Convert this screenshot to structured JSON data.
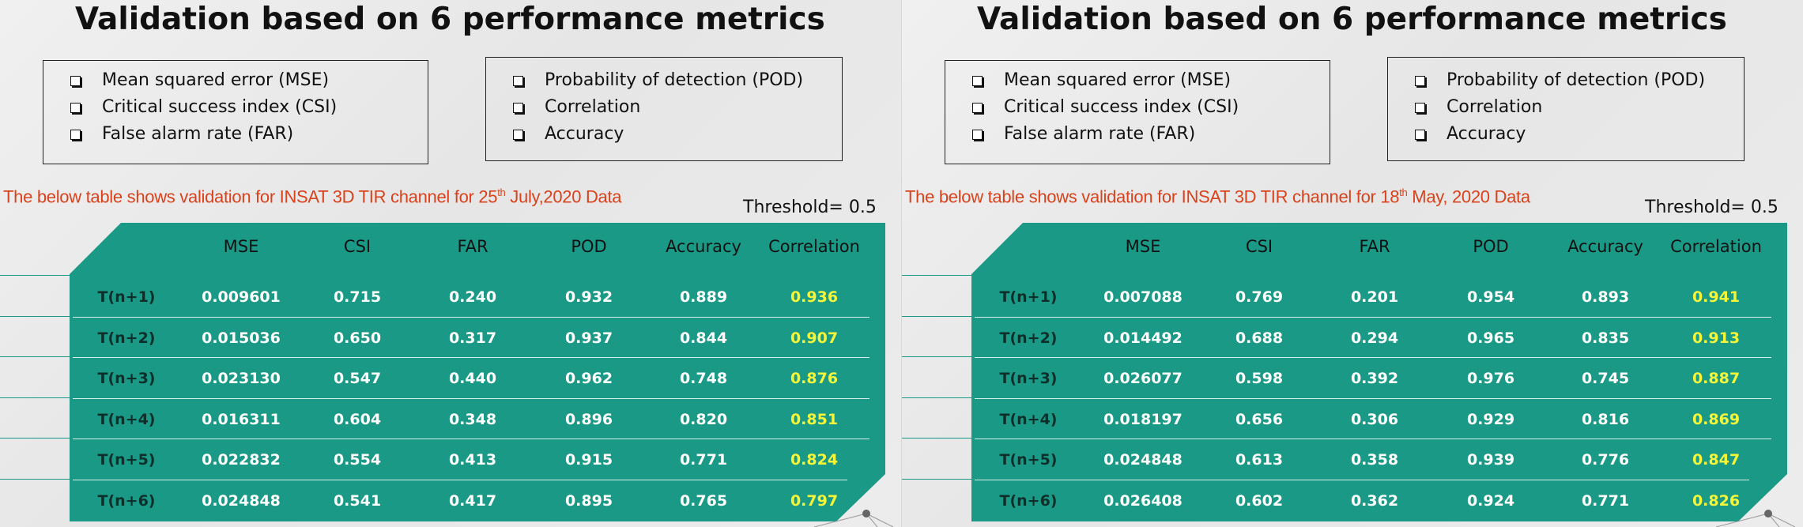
{
  "slides": [
    {
      "title": "Validation based on 6 performance metrics",
      "metrics_left": [
        "Mean squared error (MSE)",
        "Critical success index (CSI)",
        "False alarm rate (FAR)"
      ],
      "metrics_right": [
        "Probability of detection (POD)",
        "Correlation",
        "Accuracy"
      ],
      "caption_pre": "The below table shows validation for INSAT 3D TIR channel for 25",
      "caption_sup": "th",
      "caption_post": " July,2020 Data",
      "threshold": "Threshold= 0.5",
      "columns": [
        "MSE",
        "CSI",
        "FAR",
        "POD",
        "Accuracy",
        "Correlation"
      ],
      "rows": [
        {
          "label": "T(n+1)",
          "values": [
            "0.009601",
            "0.715",
            "0.240",
            "0.932",
            "0.889",
            "0.936"
          ]
        },
        {
          "label": "T(n+2)",
          "values": [
            "0.015036",
            "0.650",
            "0.317",
            "0.937",
            "0.844",
            "0.907"
          ]
        },
        {
          "label": "T(n+3)",
          "values": [
            "0.023130",
            "0.547",
            "0.440",
            "0.962",
            "0.748",
            "0.876"
          ]
        },
        {
          "label": "T(n+4)",
          "values": [
            "0.016311",
            "0.604",
            "0.348",
            "0.896",
            "0.820",
            "0.851"
          ]
        },
        {
          "label": "T(n+5)",
          "values": [
            "0.022832",
            "0.554",
            "0.413",
            "0.915",
            "0.771",
            "0.824"
          ]
        },
        {
          "label": "T(n+6)",
          "values": [
            "0.024848",
            "0.541",
            "0.417",
            "0.895",
            "0.765",
            "0.797"
          ]
        }
      ]
    },
    {
      "title": "Validation based on 6 performance metrics",
      "metrics_left": [
        "Mean squared error (MSE)",
        "Critical success index (CSI)",
        "False alarm rate (FAR)"
      ],
      "metrics_right": [
        "Probability of detection (POD)",
        "Correlation",
        "Accuracy"
      ],
      "caption_pre": "The below table shows validation for INSAT 3D TIR channel for 18",
      "caption_sup": "th",
      "caption_post": "  May, 2020 Data",
      "threshold": "Threshold= 0.5",
      "columns": [
        "MSE",
        "CSI",
        "FAR",
        "POD",
        "Accuracy",
        "Correlation"
      ],
      "rows": [
        {
          "label": "T(n+1)",
          "values": [
            "0.007088",
            "0.769",
            "0.201",
            "0.954",
            "0.893",
            "0.941"
          ]
        },
        {
          "label": "T(n+2)",
          "values": [
            "0.014492",
            "0.688",
            "0.294",
            "0.965",
            "0.835",
            "0.913"
          ]
        },
        {
          "label": "T(n+3)",
          "values": [
            "0.026077",
            "0.598",
            "0.392",
            "0.976",
            "0.745",
            "0.887"
          ]
        },
        {
          "label": "T(n+4)",
          "values": [
            "0.018197",
            "0.656",
            "0.306",
            "0.929",
            "0.816",
            "0.869"
          ]
        },
        {
          "label": "T(n+5)",
          "values": [
            "0.024848",
            "0.613",
            "0.358",
            "0.939",
            "0.776",
            "0.847"
          ]
        },
        {
          "label": "T(n+6)",
          "values": [
            "0.026408",
            "0.602",
            "0.362",
            "0.924",
            "0.771",
            "0.826"
          ]
        }
      ]
    }
  ],
  "colors": {
    "panel": "#1a9a86",
    "caption": "#d9421c",
    "correlation": "#f5f53a"
  }
}
